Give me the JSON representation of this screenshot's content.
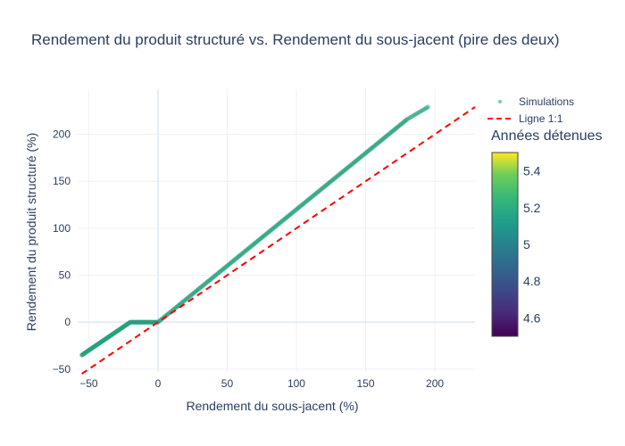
{
  "chart_data": {
    "type": "scatter",
    "title": "Rendement du produit structuré vs. Rendement du sous-jacent (pire des deux)",
    "xlabel": "Rendement du sous-jacent (%)",
    "ylabel": "Rendement du produit structuré (%)",
    "xlim": [
      -58,
      229
    ],
    "ylim": [
      -53,
      248
    ],
    "xticks": [
      -50,
      0,
      50,
      100,
      150,
      200
    ],
    "yticks": [
      -50,
      0,
      50,
      100,
      150,
      200
    ],
    "grid": true,
    "legend_position": "top-right",
    "series": [
      {
        "name": "Simulations",
        "kind": "markers",
        "color": "#26a07e",
        "points": [
          [
            -55,
            -35
          ],
          [
            -50,
            -30
          ],
          [
            -45,
            -25
          ],
          [
            -40,
            -20
          ],
          [
            -35,
            -15
          ],
          [
            -30,
            -10
          ],
          [
            -25,
            -5
          ],
          [
            -20,
            0
          ],
          [
            -15,
            0
          ],
          [
            -10,
            0
          ],
          [
            -5,
            0
          ],
          [
            0,
            0
          ],
          [
            10,
            12
          ],
          [
            20,
            24
          ],
          [
            30,
            36
          ],
          [
            40,
            48
          ],
          [
            50,
            60
          ],
          [
            60,
            72
          ],
          [
            70,
            84
          ],
          [
            80,
            96
          ],
          [
            90,
            108
          ],
          [
            100,
            120
          ],
          [
            110,
            132
          ],
          [
            120,
            144
          ],
          [
            130,
            156
          ],
          [
            140,
            168
          ],
          [
            150,
            180
          ],
          [
            160,
            192
          ],
          [
            170,
            204
          ],
          [
            180,
            216
          ],
          [
            195,
            229
          ]
        ]
      },
      {
        "name": "Ligne 1:1",
        "kind": "dashed-line",
        "color": "#ff0000",
        "points": [
          [
            -55,
            -55
          ],
          [
            229,
            229
          ]
        ]
      }
    ],
    "colorbar": {
      "title": "Années détenues",
      "range": [
        4.5,
        5.5
      ],
      "ticks": [
        4.6,
        4.8,
        5,
        5.2,
        5.4
      ],
      "colorscale": "viridis"
    }
  }
}
